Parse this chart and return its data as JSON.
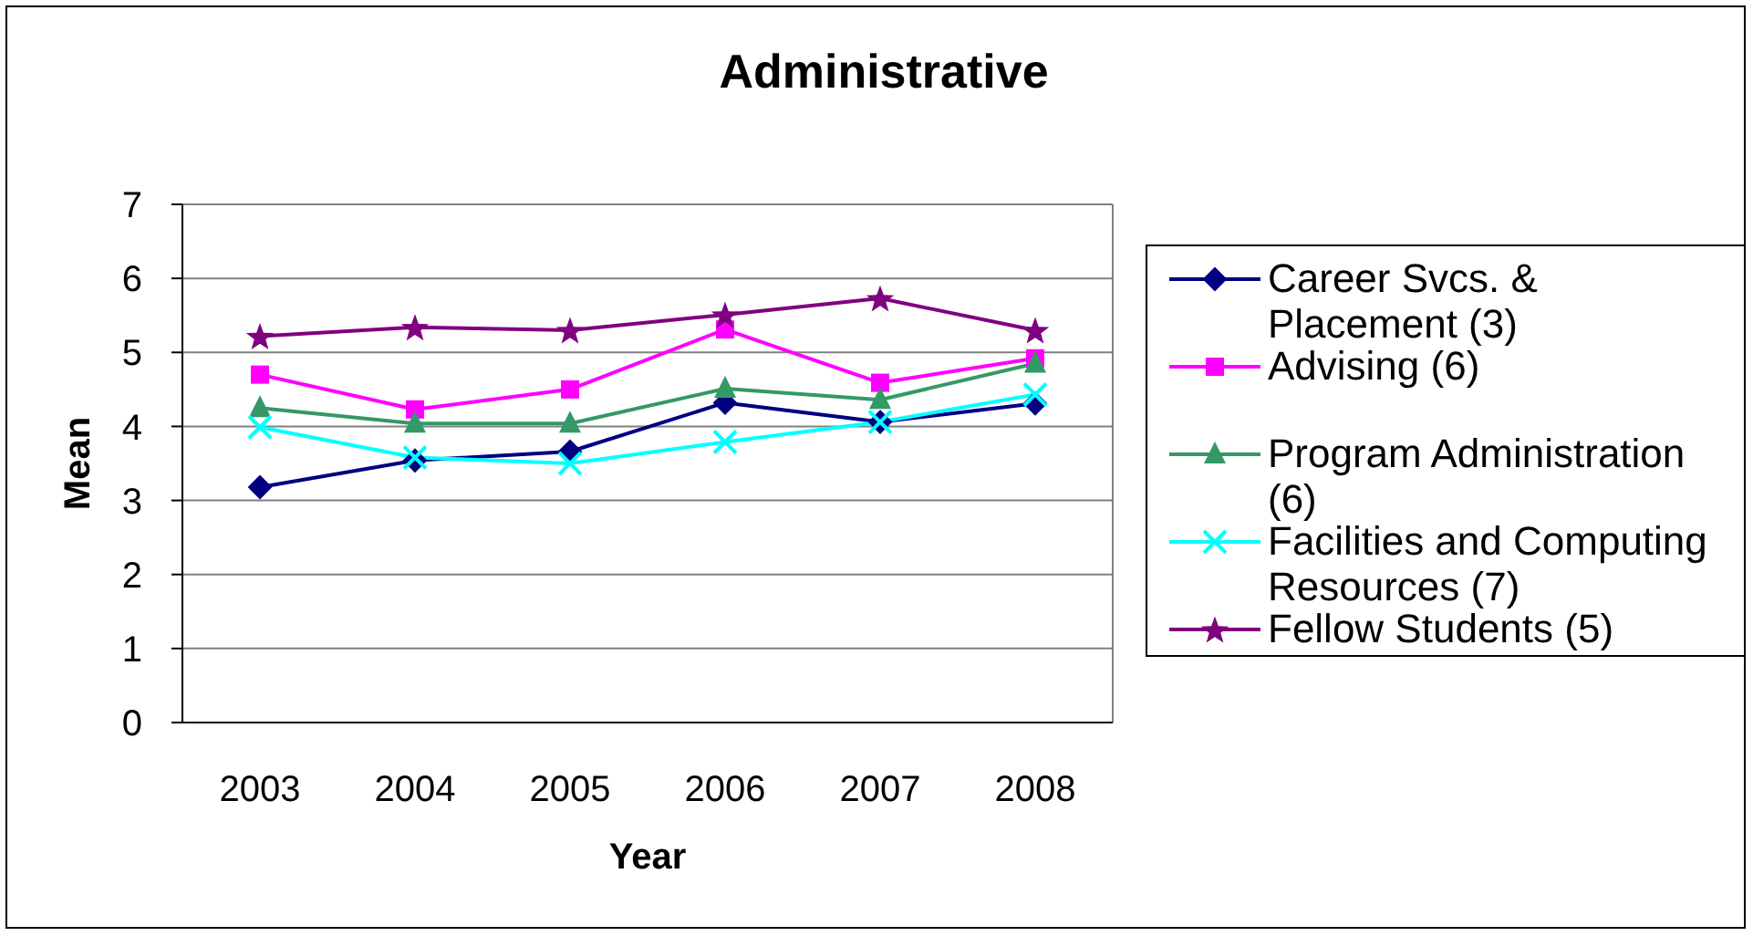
{
  "chart_data": {
    "type": "line",
    "title": "Administrative",
    "xlabel": "Year",
    "ylabel": "Mean",
    "categories": [
      "2003",
      "2004",
      "2005",
      "2006",
      "2007",
      "2008"
    ],
    "ylim": [
      0,
      7
    ],
    "yticks": [
      0,
      1,
      2,
      3,
      4,
      5,
      6,
      7
    ],
    "grid": "y",
    "legend": "right",
    "series": [
      {
        "name": "Career Svcs. & Placement (3)",
        "color": "#000080",
        "marker": "diamond",
        "values": [
          3.18,
          3.54,
          3.66,
          4.32,
          4.06,
          4.31
        ]
      },
      {
        "name": "Advising (6)",
        "color": "#ff00ff",
        "marker": "square",
        "values": [
          4.7,
          4.23,
          4.5,
          5.31,
          4.59,
          4.92
        ]
      },
      {
        "name": "Program Administration (6)",
        "color": "#339966",
        "marker": "triangle",
        "values": [
          4.25,
          4.04,
          4.04,
          4.51,
          4.36,
          4.85
        ]
      },
      {
        "name": "Facilities and Computing Resources (7)",
        "color": "#00ffff",
        "marker": "cross",
        "values": [
          3.99,
          3.58,
          3.5,
          3.79,
          4.06,
          4.43
        ]
      },
      {
        "name": "Fellow Students (5)",
        "color": "#800080",
        "marker": "star",
        "values": [
          5.22,
          5.34,
          5.3,
          5.51,
          5.73,
          5.3
        ]
      }
    ]
  }
}
